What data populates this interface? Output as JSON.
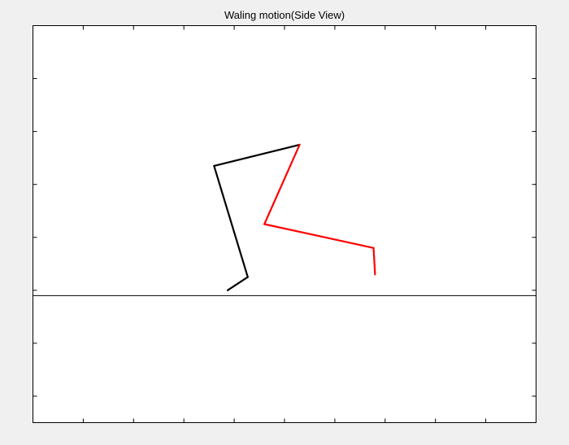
{
  "window": {
    "background": "#f0f0f0"
  },
  "chart_data": {
    "type": "line",
    "title": "Waling motion(Side View)",
    "xlabel": "",
    "ylabel": "",
    "xlim": [
      0,
      10
    ],
    "ylim": [
      -2.5,
      5
    ],
    "x_ticks": [
      0,
      1,
      2,
      3,
      4,
      5,
      6,
      7,
      8,
      9,
      10
    ],
    "y_ticks": [
      -2,
      -1,
      0,
      1,
      2,
      3,
      4,
      5
    ],
    "tick_labels_shown": false,
    "grid": false,
    "axes_background": "#ffffff",
    "ground_line": {
      "y": -0.1,
      "color": "#000000"
    },
    "series": [
      {
        "color": "#000000",
        "points": [
          {
            "x": 3.87,
            "y": 0.0
          },
          {
            "x": 4.27,
            "y": 0.25
          },
          {
            "x": 3.6,
            "y": 2.35
          },
          {
            "x": 5.3,
            "y": 2.75
          }
        ]
      },
      {
        "color": "#ff0000",
        "points": [
          {
            "x": 5.3,
            "y": 2.75
          },
          {
            "x": 4.6,
            "y": 1.25
          },
          {
            "x": 6.77,
            "y": 0.8
          },
          {
            "x": 6.8,
            "y": 0.3
          }
        ]
      }
    ]
  }
}
